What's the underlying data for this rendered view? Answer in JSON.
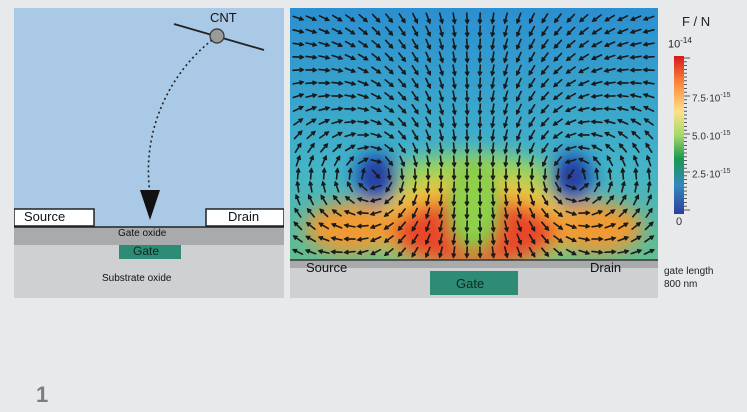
{
  "figure_number": "1",
  "panel_a": {
    "cnt_label": "CNT",
    "source_label": "Source",
    "drain_label": "Drain",
    "gate_oxide_label": "Gate oxide",
    "gate_label": "Gate",
    "substrate_label": "Substrate oxide"
  },
  "panel_b": {
    "source_label": "Source",
    "drain_label": "Drain",
    "gate_label": "Gate"
  },
  "colorbar": {
    "unit": "F / N",
    "top_base": "10",
    "top_exp": "-14",
    "ticks": [
      {
        "base": "7.5·10",
        "exp": "-15"
      },
      {
        "base": "5.0·10",
        "exp": "-15"
      },
      {
        "base": "2.5·10",
        "exp": "-15"
      }
    ],
    "zero": "0",
    "colors": [
      "#d7191c",
      "#fd8d3c",
      "#fee08b",
      "#a6d96a",
      "#1a9850",
      "#3288bd",
      "#2c3e9e"
    ]
  },
  "gate_length": {
    "line1": "gate length",
    "line2": "800 nm"
  }
}
